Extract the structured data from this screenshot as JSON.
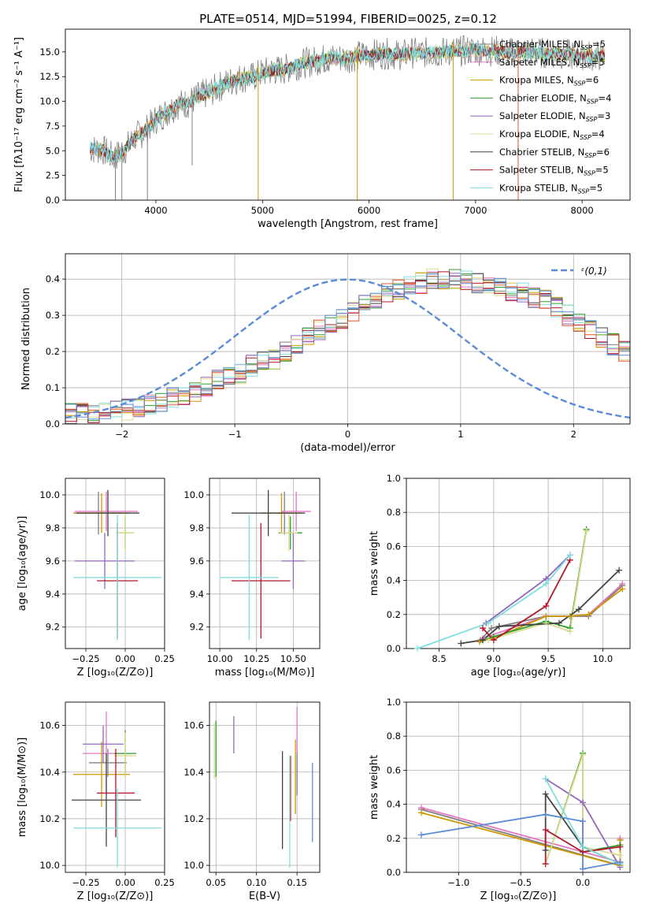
{
  "figure_title": "PLATE=0514, MJD=51994, FIBERID=0025, z=0.12",
  "colors": {
    "chabrier_miles": "#808080",
    "salpeter_miles": "#e377c2",
    "kroupa_miles": "#cc9900",
    "chabrier_elodie": "#2ca02c",
    "salpeter_elodie": "#9467bd",
    "kroupa_elodie": "#dbdb8d",
    "chabrier_stelib": "#444444",
    "salpeter_stelib": "#b2182b",
    "kroupa_stelib": "#80dede",
    "gauss": "#5b8bd6"
  },
  "chart_data": [
    {
      "id": "spectrum",
      "type": "line",
      "title": "PLATE=0514, MJD=51994, FIBERID=0025, z=0.12",
      "xlabel": "wavelength [Angstrom, rest frame]",
      "ylabel": "Flux [fλ10⁻¹⁷ erg cm⁻² s⁻¹ A⁻¹]",
      "xlim": [
        3150,
        8450
      ],
      "ylim": [
        0,
        17.3
      ],
      "xticks": [
        4000,
        5000,
        6000,
        7000,
        8000
      ],
      "yticks": [
        0.0,
        2.5,
        5.0,
        7.5,
        10.0,
        12.5,
        15.0
      ],
      "legend_position": "upper-right",
      "legend": [
        {
          "label": "Chabrier MILES, N",
          "sub": "SSP",
          "suffix": "=5",
          "color": "#808080"
        },
        {
          "label": "Salpeter MILES, N",
          "sub": "SSP",
          "suffix": "=5",
          "color": "#e377c2"
        },
        {
          "label": "Kroupa MILES, N",
          "sub": "SSP",
          "suffix": "=6",
          "color": "#cc9900"
        },
        {
          "label": "Chabrier ELODIE, N",
          "sub": "SSP",
          "suffix": "=4",
          "color": "#2ca02c"
        },
        {
          "label": "Salpeter ELODIE, N",
          "sub": "SSP",
          "suffix": "=3",
          "color": "#9467bd"
        },
        {
          "label": "Kroupa ELODIE, N",
          "sub": "SSP",
          "suffix": "=4",
          "color": "#dbdb8d"
        },
        {
          "label": "Chabrier STELIB, N",
          "sub": "SSP",
          "suffix": "=6",
          "color": "#444444"
        },
        {
          "label": "Salpeter STELIB, N",
          "sub": "SSP",
          "suffix": "=5",
          "color": "#b2182b"
        },
        {
          "label": "Kroupa STELIB, N",
          "sub": "SSP",
          "suffix": "=5",
          "color": "#80dede"
        }
      ],
      "continuum": [
        [
          3380,
          5.2
        ],
        [
          3500,
          5.1
        ],
        [
          3600,
          4.3
        ],
        [
          3700,
          5.0
        ],
        [
          3800,
          6.3
        ],
        [
          3900,
          7.0
        ],
        [
          4000,
          8.2
        ],
        [
          4100,
          8.9
        ],
        [
          4200,
          9.7
        ],
        [
          4300,
          9.8
        ],
        [
          4400,
          10.5
        ],
        [
          4500,
          10.9
        ],
        [
          4600,
          11.5
        ],
        [
          4700,
          12.0
        ],
        [
          4800,
          12.4
        ],
        [
          4900,
          12.4
        ],
        [
          5000,
          12.9
        ],
        [
          5100,
          13.1
        ],
        [
          5200,
          13.2
        ],
        [
          5300,
          13.6
        ],
        [
          5400,
          13.9
        ],
        [
          5500,
          14.1
        ],
        [
          5600,
          14.3
        ],
        [
          5700,
          14.4
        ],
        [
          5800,
          14.4
        ],
        [
          5900,
          14.6
        ],
        [
          6000,
          14.7
        ],
        [
          6100,
          14.8
        ],
        [
          6200,
          14.8
        ],
        [
          6300,
          14.7
        ],
        [
          6400,
          14.9
        ],
        [
          6500,
          14.9
        ],
        [
          6600,
          14.9
        ],
        [
          6700,
          15.0
        ],
        [
          6800,
          15.1
        ],
        [
          6900,
          15.1
        ],
        [
          7000,
          15.2
        ],
        [
          7100,
          15.1
        ],
        [
          7200,
          15.1
        ],
        [
          7300,
          14.9
        ],
        [
          7400,
          15.0
        ],
        [
          7500,
          15.0
        ],
        [
          7600,
          14.9
        ],
        [
          7700,
          14.9
        ],
        [
          7800,
          14.8
        ],
        [
          7900,
          14.7
        ],
        [
          8000,
          14.7
        ],
        [
          8100,
          14.6
        ],
        [
          8220,
          14.6
        ]
      ],
      "dips": [
        [
          3620,
          0
        ],
        [
          3680,
          0
        ],
        [
          3920,
          0
        ],
        [
          4960,
          0
        ],
        [
          5890,
          0
        ],
        [
          6790,
          0
        ],
        [
          7400,
          0
        ],
        [
          4340,
          3.5
        ]
      ]
    },
    {
      "id": "residuals",
      "type": "bar",
      "xlabel": "(data-model)/error",
      "ylabel": "Normed distribution",
      "xlim": [
        -2.5,
        2.5
      ],
      "ylim": [
        0,
        0.47
      ],
      "xticks": [
        -2,
        -1,
        0,
        1,
        2
      ],
      "yticks": [
        0.0,
        0.1,
        0.2,
        0.3,
        0.4
      ],
      "legend": "ᵋ(0,1)",
      "legend_position": "upper-right",
      "bin_width": 0.1,
      "bins_from": -2.5,
      "envelope": [
        0.03,
        0.03,
        0.03,
        0.03,
        0.04,
        0.04,
        0.05,
        0.05,
        0.06,
        0.07,
        0.08,
        0.09,
        0.1,
        0.12,
        0.13,
        0.14,
        0.16,
        0.17,
        0.18,
        0.2,
        0.22,
        0.24,
        0.26,
        0.28,
        0.29,
        0.31,
        0.33,
        0.34,
        0.36,
        0.37,
        0.38,
        0.39,
        0.4,
        0.4,
        0.4,
        0.4,
        0.39,
        0.39,
        0.38,
        0.37,
        0.36,
        0.35,
        0.34,
        0.32,
        0.3,
        0.28,
        0.26,
        0.24,
        0.22,
        0.2,
        0.18,
        0.17,
        0.15,
        0.13,
        0.12,
        0.1,
        0.09,
        0.08,
        0.07,
        0.06,
        0.05,
        0.05,
        0.04,
        0.04,
        0.03,
        0.03,
        0.03,
        0.02,
        0.02,
        0.02,
        0.02
      ]
    },
    {
      "id": "age_vs_Z",
      "type": "scatter",
      "xlabel": "Z [log₁₀(Z/Z⊙)]",
      "ylabel": "age  [log₁₀(age/yr)]",
      "xlim": [
        -0.38,
        0.25
      ],
      "ylim": [
        9.07,
        10.1
      ],
      "xticks": [
        -0.25,
        0.0,
        0.25
      ],
      "xticklabels": [
        "−0.25",
        "0.00",
        "0.25"
      ],
      "yticks": [
        9.2,
        9.4,
        9.6,
        9.8,
        10.0
      ],
      "points": [
        {
          "name": "chabrier_miles",
          "x": -0.17,
          "xerr": 0.15,
          "y": 9.89,
          "yerr": 0.13
        },
        {
          "name": "salpeter_miles",
          "x": -0.12,
          "xerr": 0.2,
          "y": 9.9,
          "yerr": 0.12
        },
        {
          "name": "kroupa_miles",
          "x": -0.15,
          "xerr": 0.18,
          "y": 9.89,
          "yerr": 0.12
        },
        {
          "name": "chabrier_elodie",
          "x": 0.0,
          "xerr": 0.04,
          "y": 9.77,
          "yerr": 0.1
        },
        {
          "name": "salpeter_elodie",
          "x": -0.13,
          "xerr": 0.19,
          "y": 9.6,
          "yerr": 0.17
        },
        {
          "name": "kroupa_elodie",
          "x": 0.0,
          "xerr": 0.06,
          "y": 9.77,
          "yerr": 0.11
        },
        {
          "name": "chabrier_stelib",
          "x": -0.11,
          "xerr": 0.2,
          "y": 9.89,
          "yerr": 0.14
        },
        {
          "name": "salpeter_stelib",
          "x": -0.05,
          "xerr": 0.13,
          "y": 9.48,
          "yerr": 0.35
        },
        {
          "name": "kroupa_stelib",
          "x": -0.05,
          "xerr": 0.28,
          "y": 9.5,
          "yerr": 0.38
        }
      ]
    },
    {
      "id": "age_vs_mass",
      "type": "scatter",
      "xlabel": "mass [log₁₀(M/M⊙)]",
      "ylabel": "",
      "xlim": [
        9.93,
        10.68
      ],
      "ylim": [
        9.07,
        10.1
      ],
      "xticks": [
        10.0,
        10.25,
        10.5
      ],
      "xticklabels": [
        "10.00",
        "10.25",
        "10.50"
      ],
      "yticks": [
        9.2,
        9.4,
        9.6,
        9.8,
        10.0
      ],
      "points": [
        {
          "name": "chabrier_miles",
          "x": 10.44,
          "xerr": 0.06,
          "y": 9.89,
          "yerr": 0.13
        },
        {
          "name": "salpeter_miles",
          "x": 10.52,
          "xerr": 0.1,
          "y": 9.9,
          "yerr": 0.12
        },
        {
          "name": "kroupa_miles",
          "x": 10.42,
          "xerr": 0.14,
          "y": 9.89,
          "yerr": 0.12
        },
        {
          "name": "chabrier_elodie",
          "x": 10.48,
          "xerr": 0.08,
          "y": 9.77,
          "yerr": 0.1
        },
        {
          "name": "salpeter_elodie",
          "x": 10.5,
          "xerr": 0.08,
          "y": 9.6,
          "yerr": 0.17
        },
        {
          "name": "kroupa_elodie",
          "x": 10.47,
          "xerr": 0.06,
          "y": 9.77,
          "yerr": 0.11
        },
        {
          "name": "chabrier_stelib",
          "x": 10.33,
          "xerr": 0.25,
          "y": 9.89,
          "yerr": 0.14
        },
        {
          "name": "salpeter_stelib",
          "x": 10.28,
          "xerr": 0.2,
          "y": 9.48,
          "yerr": 0.35
        },
        {
          "name": "kroupa_stelib",
          "x": 10.2,
          "xerr": 0.2,
          "y": 9.5,
          "yerr": 0.38
        }
      ]
    },
    {
      "id": "mass_weight_vs_age",
      "type": "line",
      "xlabel": "age  [log₁₀(age/yr)]",
      "ylabel": "mass weight",
      "xlim": [
        8.2,
        10.25
      ],
      "ylim": [
        0,
        1
      ],
      "xticks": [
        8.5,
        9.0,
        9.5,
        10.0
      ],
      "xticklabels": [
        "8.5",
        "9.0",
        "9.5",
        "10.0"
      ],
      "yticks": [
        0.0,
        0.2,
        0.4,
        0.6,
        0.8,
        1.0
      ],
      "series": [
        {
          "name": "chabrier_miles",
          "x": [
            8.88,
            8.98,
            9.48,
            9.87,
            10.18
          ],
          "y": [
            0.05,
            0.12,
            0.19,
            0.19,
            0.37
          ]
        },
        {
          "name": "salpeter_miles",
          "x": [
            8.9,
            9.48,
            9.7,
            9.87,
            10.18
          ],
          "y": [
            0.06,
            0.19,
            0.19,
            0.2,
            0.38
          ]
        },
        {
          "name": "kroupa_miles",
          "x": [
            8.87,
            9.0,
            9.48,
            9.7,
            9.87,
            10.18
          ],
          "y": [
            0.04,
            0.06,
            0.19,
            0.19,
            0.2,
            0.35
          ]
        },
        {
          "name": "chabrier_elodie",
          "x": [
            8.9,
            9.0,
            9.48,
            9.7,
            9.85
          ],
          "y": [
            0.05,
            0.07,
            0.16,
            0.12,
            0.7
          ]
        },
        {
          "name": "salpeter_elodie",
          "x": [
            8.93,
            9.48,
            9.7
          ],
          "y": [
            0.15,
            0.41,
            0.55
          ]
        },
        {
          "name": "kroupa_elodie",
          "x": [
            8.95,
            9.48,
            9.7,
            9.85
          ],
          "y": [
            0.05,
            0.15,
            0.1,
            0.69
          ]
        },
        {
          "name": "chabrier_stelib",
          "x": [
            8.7,
            8.9,
            9.05,
            9.6,
            9.78,
            10.15
          ],
          "y": [
            0.03,
            0.05,
            0.13,
            0.15,
            0.23,
            0.46
          ]
        },
        {
          "name": "salpeter_stelib",
          "x": [
            8.9,
            9.0,
            9.48,
            9.7
          ],
          "y": [
            0.12,
            0.05,
            0.25,
            0.52
          ]
        },
        {
          "name": "kroupa_stelib",
          "x": [
            8.3,
            8.95,
            9.48,
            9.7
          ],
          "y": [
            0.0,
            0.15,
            0.38,
            0.55
          ]
        }
      ]
    },
    {
      "id": "mass_vs_Z",
      "type": "scatter",
      "xlabel": "Z [log₁₀(Z/Z⊙)]",
      "ylabel": "mass [log₁₀(M/M⊙)]",
      "xlim": [
        -0.38,
        0.25
      ],
      "ylim": [
        9.97,
        10.7
      ],
      "xticks": [
        -0.25,
        0.0,
        0.25
      ],
      "xticklabels": [
        "−0.25",
        "0.00",
        "0.25"
      ],
      "yticks": [
        10.0,
        10.2,
        10.4,
        10.6
      ],
      "points": [
        {
          "name": "chabrier_miles",
          "x": -0.11,
          "xerr": 0.12,
          "y": 10.44,
          "yerr": 0.06
        },
        {
          "name": "salpeter_miles",
          "x": -0.12,
          "xerr": 0.15,
          "y": 10.48,
          "yerr": 0.18
        },
        {
          "name": "kroupa_miles",
          "x": -0.15,
          "xerr": 0.18,
          "y": 10.39,
          "yerr": 0.14
        },
        {
          "name": "chabrier_elodie",
          "x": 0.0,
          "xerr": 0.07,
          "y": 10.48,
          "yerr": 0.1
        },
        {
          "name": "salpeter_elodie",
          "x": -0.14,
          "xerr": 0.13,
          "y": 10.52,
          "yerr": 0.08
        },
        {
          "name": "kroupa_elodie",
          "x": 0.0,
          "xerr": 0.07,
          "y": 10.47,
          "yerr": 0.1
        },
        {
          "name": "chabrier_stelib",
          "x": -0.12,
          "xerr": 0.22,
          "y": 10.28,
          "yerr": 0.2
        },
        {
          "name": "salpeter_stelib",
          "x": -0.06,
          "xerr": 0.12,
          "y": 10.31,
          "yerr": 0.19
        },
        {
          "name": "kroupa_stelib",
          "x": -0.05,
          "xerr": 0.28,
          "y": 10.16,
          "yerr": 0.17
        }
      ]
    },
    {
      "id": "mass_vs_ebv",
      "type": "scatter",
      "xlabel": "E(B-V)",
      "ylabel": "",
      "xlim": [
        0.042,
        0.178
      ],
      "ylim": [
        9.97,
        10.7
      ],
      "xticks": [
        0.05,
        0.1,
        0.15
      ],
      "xticklabels": [
        "0.05",
        "0.10",
        "0.15"
      ],
      "yticks": [
        10.0,
        10.2,
        10.4,
        10.6
      ],
      "points": [
        {
          "name": "chabrier_miles",
          "x": 0.15,
          "y": 10.4,
          "yerr": 0.1
        },
        {
          "name": "salpeter_miles",
          "x": 0.15,
          "y": 10.58,
          "yerr": 0.1
        },
        {
          "name": "kroupa_miles",
          "x": 0.148,
          "y": 10.38,
          "yerr": 0.16
        },
        {
          "name": "chabrier_elodie",
          "x": 0.05,
          "y": 10.5,
          "yerr": 0.12
        },
        {
          "name": "salpeter_elodie",
          "x": 0.072,
          "y": 10.56,
          "yerr": 0.08
        },
        {
          "name": "kroupa_elodie",
          "x": 0.048,
          "y": 10.49,
          "yerr": 0.12
        },
        {
          "name": "chabrier_stelib",
          "x": 0.132,
          "y": 10.28,
          "yerr": 0.21
        },
        {
          "name": "salpeter_stelib",
          "x": 0.142,
          "y": 10.33,
          "yerr": 0.14
        },
        {
          "name": "kroupa_stelib",
          "x": 0.141,
          "y": 10.23,
          "yerr": 0.24
        },
        {
          "name": "extra_blue",
          "x": 0.169,
          "y": 10.27,
          "yerr": 0.17
        }
      ]
    },
    {
      "id": "mass_weight_vs_Z",
      "type": "line",
      "xlabel": "Z [log₁₀(Z/Z⊙)]",
      "ylabel": "mass weight",
      "xlim": [
        -1.42,
        0.38
      ],
      "ylim": [
        0,
        1
      ],
      "xticks": [
        -1.0,
        -0.5,
        0.0
      ],
      "xticklabels": [
        "−1.0",
        "−0.5",
        "0.0"
      ],
      "yticks": [
        0.0,
        0.2,
        0.4,
        0.6,
        0.8,
        1.0
      ],
      "series": [
        {
          "name": "chabrier_miles",
          "x": [
            -1.3,
            0.3,
            0.3
          ],
          "y": [
            0.37,
            0.04,
            0.19
          ]
        },
        {
          "name": "salpeter_miles",
          "x": [
            -1.3,
            0.3,
            0.3
          ],
          "y": [
            0.38,
            0.06,
            0.2
          ]
        },
        {
          "name": "kroupa_miles",
          "x": [
            -1.3,
            0.3,
            0.3,
            0.3
          ],
          "y": [
            0.35,
            0.04,
            0.19,
            0.06
          ]
        },
        {
          "name": "chabrier_elodie",
          "x": [
            -0.3,
            0.0,
            0.0,
            0.3
          ],
          "y": [
            0.05,
            0.7,
            0.12,
            0.16
          ]
        },
        {
          "name": "salpeter_elodie",
          "x": [
            -0.3,
            0.0,
            0.3
          ],
          "y": [
            0.55,
            0.41,
            0.03
          ]
        },
        {
          "name": "kroupa_elodie",
          "x": [
            -0.3,
            0.0,
            0.0,
            0.3
          ],
          "y": [
            0.05,
            0.69,
            0.15,
            0.1
          ]
        },
        {
          "name": "chabrier_stelib",
          "x": [
            -0.3,
            -0.3,
            0.0,
            0.3
          ],
          "y": [
            0.13,
            0.46,
            0.15,
            0.05
          ]
        },
        {
          "name": "salpeter_stelib",
          "x": [
            -0.3,
            -0.3,
            0.0,
            0.3
          ],
          "y": [
            0.05,
            0.25,
            0.12,
            0.15
          ]
        },
        {
          "name": "kroupa_stelib",
          "x": [
            -0.3,
            0.0,
            0.3
          ],
          "y": [
            0.55,
            0.15,
            0.05
          ]
        },
        {
          "name": "blue_extra",
          "x": [
            -1.3,
            -0.3,
            0.0,
            0.0,
            0.3
          ],
          "y": [
            0.22,
            0.34,
            0.3,
            0.02,
            0.06
          ]
        }
      ]
    }
  ]
}
